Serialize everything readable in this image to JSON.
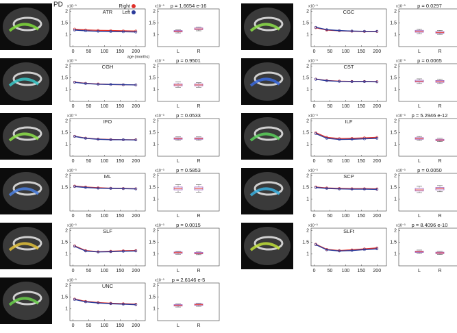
{
  "panel_label": "PD",
  "chart_data": [
    {
      "type": "line",
      "title": "ATR",
      "y_exponent": "x10⁻³",
      "xlabel": "age (months)",
      "legend": "top-right",
      "xlim": [
        -10,
        230
      ],
      "xticks": [
        0,
        50,
        100,
        150,
        200
      ],
      "ylim": [
        0.5,
        2.1
      ],
      "yticks": [
        1,
        1.5,
        2
      ],
      "x": [
        5,
        40,
        80,
        120,
        160,
        200
      ],
      "series": [
        {
          "name": "Right",
          "color": "#e0302a",
          "values": [
            1.24,
            1.21,
            1.19,
            1.18,
            1.17,
            1.16
          ]
        },
        {
          "name": "Left",
          "color": "#2a3a9a",
          "values": [
            1.2,
            1.17,
            1.15,
            1.14,
            1.13,
            1.12
          ]
        }
      ]
    },
    {
      "type": "box",
      "title": "p = 1.6654 e-16",
      "y_exponent": "x10⁻³",
      "categories": [
        "L",
        "R"
      ],
      "ylim": [
        0.5,
        2.1
      ],
      "yticks": [
        1,
        1.5,
        2
      ],
      "color": "#9b59b6",
      "median": [
        1.15,
        1.25
      ],
      "q1": [
        1.12,
        1.22
      ],
      "q3": [
        1.18,
        1.29
      ],
      "whisker_low": [
        1.08,
        1.17
      ],
      "whisker_high": [
        1.22,
        1.33
      ]
    },
    {
      "type": "line",
      "title": "CGH",
      "y_exponent": "x10⁻³",
      "xlim": [
        -10,
        230
      ],
      "xticks": [
        0,
        50,
        100,
        150,
        200
      ],
      "ylim": [
        0.5,
        2.1
      ],
      "yticks": [
        1,
        1.5,
        2
      ],
      "x": [
        5,
        40,
        80,
        120,
        160,
        200
      ],
      "series": [
        {
          "color": "#e0302a",
          "values": [
            1.32,
            1.27,
            1.24,
            1.22,
            1.21,
            1.2
          ]
        },
        {
          "color": "#2a3a9a",
          "values": [
            1.31,
            1.26,
            1.23,
            1.22,
            1.21,
            1.2
          ]
        }
      ]
    },
    {
      "type": "box",
      "title": "p = 0.9501",
      "y_exponent": "x10⁻³",
      "categories": [
        "L",
        "R"
      ],
      "ylim": [
        0.5,
        2.1
      ],
      "yticks": [
        1,
        1.5,
        2
      ],
      "color": "#9b59b6",
      "median": [
        1.2,
        1.2
      ],
      "q1": [
        1.16,
        1.16
      ],
      "q3": [
        1.24,
        1.24
      ],
      "whisker_low": [
        1.1,
        1.1
      ],
      "whisker_high": [
        1.32,
        1.3
      ]
    },
    {
      "type": "line",
      "title": "IFO",
      "y_exponent": "x10⁻³",
      "xlim": [
        -10,
        230
      ],
      "xticks": [
        0,
        50,
        100,
        150,
        200
      ],
      "ylim": [
        0.5,
        2.1
      ],
      "yticks": [
        1,
        1.5,
        2
      ],
      "x": [
        5,
        40,
        80,
        120,
        160,
        200
      ],
      "series": [
        {
          "color": "#e0302a",
          "values": [
            1.35,
            1.27,
            1.23,
            1.21,
            1.2,
            1.2
          ]
        },
        {
          "color": "#2a3a9a",
          "values": [
            1.34,
            1.26,
            1.22,
            1.2,
            1.2,
            1.19
          ]
        }
      ]
    },
    {
      "type": "box",
      "title": "p = 0.0533",
      "y_exponent": "x10⁻³",
      "categories": [
        "L",
        "R"
      ],
      "ylim": [
        0.5,
        2.1
      ],
      "yticks": [
        1,
        1.5,
        2
      ],
      "color": "#9b59b6",
      "median": [
        1.25,
        1.25
      ],
      "q1": [
        1.22,
        1.22
      ],
      "q3": [
        1.28,
        1.28
      ],
      "whisker_low": [
        1.18,
        1.18
      ],
      "whisker_high": [
        1.32,
        1.32
      ]
    },
    {
      "type": "line",
      "title": "ML",
      "y_exponent": "x10⁻³",
      "xlim": [
        -10,
        230
      ],
      "xticks": [
        0,
        50,
        100,
        150,
        200
      ],
      "ylim": [
        0.5,
        2.1
      ],
      "yticks": [
        1.5,
        2
      ],
      "x": [
        5,
        40,
        80,
        120,
        160,
        200
      ],
      "series": [
        {
          "color": "#e0302a",
          "values": [
            1.56,
            1.52,
            1.49,
            1.47,
            1.46,
            1.45
          ]
        },
        {
          "color": "#2a3a9a",
          "values": [
            1.54,
            1.5,
            1.47,
            1.46,
            1.45,
            1.44
          ]
        }
      ]
    },
    {
      "type": "box",
      "title": "p = 0.5853",
      "y_exponent": "x10⁻³",
      "categories": [
        "L",
        "R"
      ],
      "ylim": [
        0.5,
        2.1
      ],
      "yticks": [
        1,
        1.5,
        2
      ],
      "color": "#9b59b6",
      "median": [
        1.45,
        1.45
      ],
      "q1": [
        1.4,
        1.4
      ],
      "q3": [
        1.52,
        1.52
      ],
      "whisker_low": [
        1.3,
        1.3
      ],
      "whisker_high": [
        1.62,
        1.62
      ]
    },
    {
      "type": "line",
      "title": "SLF",
      "y_exponent": "x10⁻³",
      "xlim": [
        -10,
        230
      ],
      "xticks": [
        0,
        50,
        100,
        150,
        200
      ],
      "ylim": [
        0.5,
        2.1
      ],
      "yticks": [
        1,
        1.5,
        2
      ],
      "x": [
        5,
        40,
        80,
        120,
        160,
        200
      ],
      "series": [
        {
          "color": "#e0302a",
          "values": [
            1.35,
            1.15,
            1.1,
            1.12,
            1.14,
            1.15
          ]
        },
        {
          "color": "#2a3a9a",
          "values": [
            1.33,
            1.13,
            1.09,
            1.1,
            1.12,
            1.13
          ]
        }
      ]
    },
    {
      "type": "box",
      "title": "p = 0.0015",
      "y_exponent": "x10⁻³",
      "categories": [
        "L",
        "R"
      ],
      "ylim": [
        0.5,
        2.1
      ],
      "yticks": [
        1,
        1.5,
        2
      ],
      "color": "#9b59b6",
      "median": [
        1.06,
        1.04
      ],
      "q1": [
        1.03,
        1.01
      ],
      "q3": [
        1.09,
        1.07
      ],
      "whisker_low": [
        0.99,
        0.97
      ],
      "whisker_high": [
        1.12,
        1.1
      ]
    },
    {
      "type": "line",
      "title": "UNC",
      "y_exponent": "x10⁻³",
      "xlim": [
        -10,
        230
      ],
      "xticks": [
        0,
        50,
        100,
        150,
        200
      ],
      "ylim": [
        0.5,
        2.1
      ],
      "yticks": [
        1,
        1.5,
        2
      ],
      "x": [
        5,
        40,
        80,
        120,
        160,
        200
      ],
      "series": [
        {
          "color": "#e0302a",
          "values": [
            1.42,
            1.32,
            1.27,
            1.24,
            1.22,
            1.2
          ]
        },
        {
          "color": "#2a3a9a",
          "values": [
            1.4,
            1.3,
            1.25,
            1.22,
            1.2,
            1.18
          ]
        }
      ]
    },
    {
      "type": "box",
      "title": "p = 2.6146 e-5",
      "y_exponent": "x10⁻³",
      "categories": [
        "L",
        "R"
      ],
      "ylim": [
        0.5,
        2.1
      ],
      "yticks": [
        1,
        1.5,
        2
      ],
      "color": "#9b59b6",
      "median": [
        1.15,
        1.18
      ],
      "q1": [
        1.12,
        1.15
      ],
      "q3": [
        1.18,
        1.21
      ],
      "whisker_low": [
        1.08,
        1.11
      ],
      "whisker_high": [
        1.22,
        1.25
      ]
    },
    {
      "type": "line",
      "title": "CGC",
      "y_exponent": "x10⁻³",
      "xlim": [
        -10,
        230
      ],
      "xticks": [
        0,
        50,
        100,
        150,
        200
      ],
      "ylim": [
        0.5,
        2.1
      ],
      "yticks": [
        1,
        1.5,
        2
      ],
      "x": [
        5,
        40,
        80,
        120,
        160,
        200
      ],
      "series": [
        {
          "color": "#e0302a",
          "values": [
            1.3,
            1.2,
            1.17,
            1.15,
            1.14,
            1.14
          ]
        },
        {
          "color": "#2a3a9a",
          "values": [
            1.32,
            1.22,
            1.18,
            1.16,
            1.15,
            1.15
          ]
        }
      ]
    },
    {
      "type": "box",
      "title": "p = 0.0297",
      "y_exponent": "x10⁻³",
      "categories": [
        "L",
        "R"
      ],
      "ylim": [
        0.5,
        2.1
      ],
      "yticks": [
        1,
        1.5,
        2
      ],
      "color": "#9b59b6",
      "median": [
        1.15,
        1.1
      ],
      "q1": [
        1.11,
        1.07
      ],
      "q3": [
        1.19,
        1.14
      ],
      "whisker_low": [
        1.05,
        1.02
      ],
      "whisker_high": [
        1.24,
        1.19
      ]
    },
    {
      "type": "line",
      "title": "CST",
      "y_exponent": "x10⁻³",
      "xlim": [
        -10,
        230
      ],
      "xticks": [
        0,
        50,
        100,
        150,
        200
      ],
      "ylim": [
        0.5,
        2.1
      ],
      "yticks": [
        1,
        1.5,
        2
      ],
      "x": [
        5,
        40,
        80,
        120,
        160,
        200
      ],
      "series": [
        {
          "color": "#e0302a",
          "values": [
            1.45,
            1.39,
            1.36,
            1.35,
            1.35,
            1.34
          ]
        },
        {
          "color": "#2a3a9a",
          "values": [
            1.44,
            1.38,
            1.35,
            1.34,
            1.34,
            1.33
          ]
        }
      ]
    },
    {
      "type": "box",
      "title": "p = 0.0065",
      "y_exponent": "x10⁻³",
      "categories": [
        "L",
        "R"
      ],
      "ylim": [
        0.5,
        2.1
      ],
      "yticks": [
        1,
        1.5,
        2
      ],
      "color": "#9b59b6",
      "median": [
        1.36,
        1.35
      ],
      "q1": [
        1.32,
        1.31
      ],
      "q3": [
        1.4,
        1.39
      ],
      "whisker_low": [
        1.26,
        1.26
      ],
      "whisker_high": [
        1.46,
        1.44
      ]
    },
    {
      "type": "line",
      "title": "ILF",
      "y_exponent": "x10⁻³",
      "xlim": [
        -10,
        230
      ],
      "xticks": [
        0,
        50,
        100,
        150,
        200
      ],
      "ylim": [
        0.5,
        2.1
      ],
      "yticks": [
        1,
        1.5,
        2
      ],
      "x": [
        5,
        40,
        80,
        120,
        160,
        200
      ],
      "series": [
        {
          "color": "#e0302a",
          "values": [
            1.5,
            1.3,
            1.25,
            1.26,
            1.28,
            1.3
          ]
        },
        {
          "color": "#2a3a9a",
          "values": [
            1.46,
            1.26,
            1.21,
            1.22,
            1.24,
            1.26
          ]
        }
      ]
    },
    {
      "type": "box",
      "title": "p = 5.2946 e-12",
      "y_exponent": "x10⁻³",
      "categories": [
        "L",
        "R"
      ],
      "ylim": [
        0.5,
        2.1
      ],
      "yticks": [
        1,
        1.5,
        2
      ],
      "color": "#9b59b6",
      "median": [
        1.25,
        1.19
      ],
      "q1": [
        1.22,
        1.16
      ],
      "q3": [
        1.29,
        1.22
      ],
      "whisker_low": [
        1.17,
        1.12
      ],
      "whisker_high": [
        1.34,
        1.26
      ]
    },
    {
      "type": "line",
      "title": "SCP",
      "y_exponent": "x10⁻³",
      "xlim": [
        -10,
        230
      ],
      "xticks": [
        0,
        50,
        100,
        150,
        200
      ],
      "ylim": [
        0.5,
        2.1
      ],
      "yticks": [
        1,
        1.5,
        2
      ],
      "x": [
        5,
        40,
        80,
        120,
        160,
        200
      ],
      "series": [
        {
          "color": "#e0302a",
          "values": [
            1.52,
            1.48,
            1.46,
            1.45,
            1.45,
            1.44
          ]
        },
        {
          "color": "#2a3a9a",
          "values": [
            1.5,
            1.46,
            1.44,
            1.43,
            1.43,
            1.42
          ]
        }
      ]
    },
    {
      "type": "box",
      "title": "p = 0.0050",
      "y_exponent": "x10⁻³",
      "categories": [
        "L",
        "R"
      ],
      "ylim": [
        0.5,
        2.1
      ],
      "yticks": [
        1,
        1.5,
        2
      ],
      "color": "#9b59b6",
      "median": [
        1.4,
        1.45
      ],
      "q1": [
        1.35,
        1.4
      ],
      "q3": [
        1.46,
        1.5
      ],
      "whisker_low": [
        1.28,
        1.32
      ],
      "whisker_high": [
        1.55,
        1.58
      ]
    },
    {
      "type": "line",
      "title": "SLFt",
      "y_exponent": "x10⁻³",
      "xlim": [
        -10,
        230
      ],
      "xticks": [
        0,
        50,
        100,
        150,
        200
      ],
      "ylim": [
        0.5,
        2.1
      ],
      "yticks": [
        1,
        1.5,
        2
      ],
      "x": [
        5,
        40,
        80,
        120,
        160,
        200
      ],
      "series": [
        {
          "color": "#e0302a",
          "values": [
            1.42,
            1.2,
            1.15,
            1.18,
            1.22,
            1.26
          ]
        },
        {
          "color": "#2a3a9a",
          "values": [
            1.4,
            1.18,
            1.13,
            1.15,
            1.19,
            1.22
          ]
        }
      ]
    },
    {
      "type": "box",
      "title": "p = 8.4096 e-10",
      "y_exponent": "x10⁻³",
      "categories": [
        "L",
        "R"
      ],
      "ylim": [
        0.5,
        2.1
      ],
      "yticks": [
        1,
        1.5,
        2
      ],
      "color": "#9b59b6",
      "median": [
        1.1,
        1.05
      ],
      "q1": [
        1.07,
        1.02
      ],
      "q3": [
        1.13,
        1.08
      ],
      "whisker_low": [
        1.03,
        0.98
      ],
      "whisker_high": [
        1.17,
        1.12
      ]
    }
  ]
}
